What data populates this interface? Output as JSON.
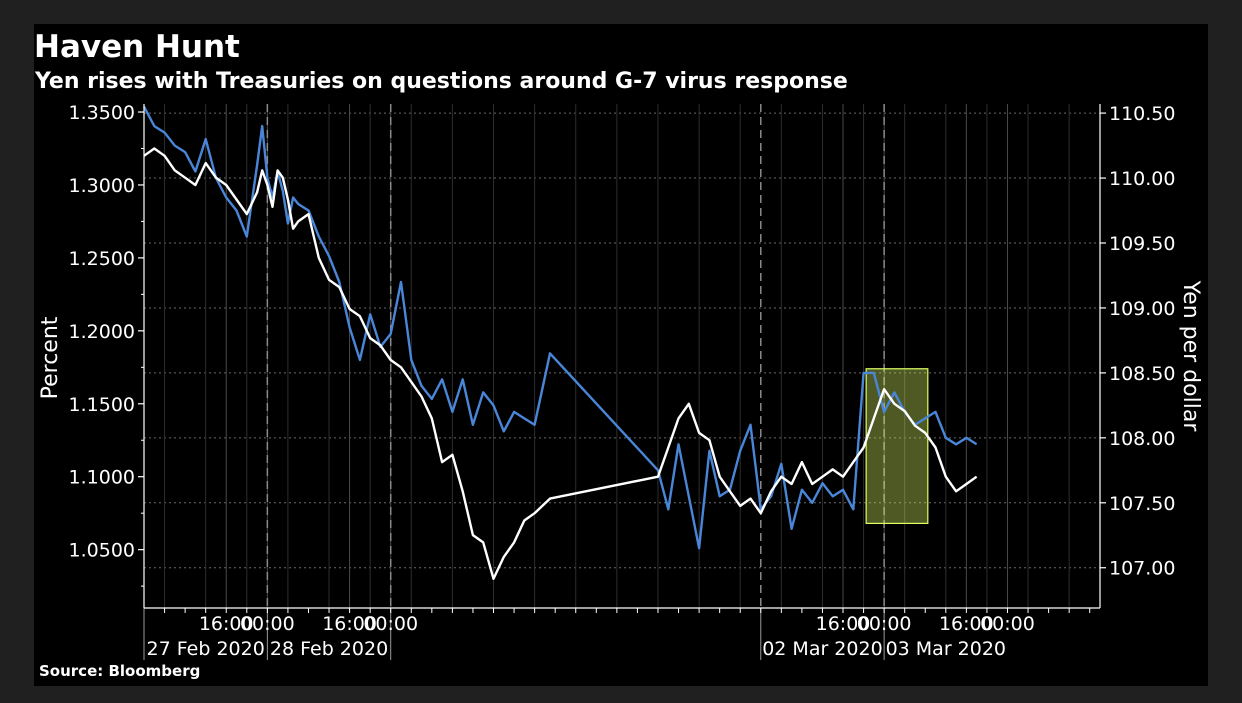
{
  "chart_data": {
    "type": "line",
    "title": "Haven Hunt",
    "subtitle": "Yen rises with Treasuries on questions around G-7 virus response",
    "source": "Source: Bloomberg",
    "ylabel_left": "Percent",
    "ylabel_right": "Yen per dollar",
    "y_left": {
      "range": [
        1.01,
        1.3555
      ],
      "ticks": [
        1.35,
        1.3,
        1.25,
        1.2,
        1.15,
        1.1,
        1.05
      ],
      "tick_labels": [
        "1.3500",
        "1.3000",
        "1.2500",
        "1.2000",
        "1.1500",
        "1.1000",
        "1.0500"
      ]
    },
    "y_right": {
      "range": [
        106.69,
        110.57
      ],
      "ticks": [
        110.5,
        110.0,
        109.5,
        109.0,
        108.5,
        108.0,
        107.5,
        107.0
      ],
      "tick_labels": [
        "110.50",
        "110.00",
        "109.50",
        "109.00",
        "108.50",
        "108.00",
        "107.50",
        "107.00"
      ]
    },
    "x_ticks": [
      {
        "t": 16,
        "label": "16:00"
      },
      {
        "t": 24,
        "label": "00:00"
      },
      {
        "t": 40,
        "label": "16:00"
      },
      {
        "t": 48,
        "label": "00:00"
      },
      {
        "t": 136,
        "label": "16:00"
      },
      {
        "t": 144,
        "label": "00:00"
      },
      {
        "t": 160,
        "label": "16:00"
      },
      {
        "t": 168,
        "label": "00:00"
      }
    ],
    "date_labels": [
      {
        "t": 12,
        "label": "27 Feb 2020"
      },
      {
        "t": 36,
        "label": "28 Feb 2020"
      },
      {
        "t": 132,
        "label": "02 Mar 2020"
      },
      {
        "t": 156,
        "label": "03 Mar 2020"
      }
    ],
    "x_range": [
      0,
      186
    ],
    "day_separators": [
      0,
      24,
      48,
      120,
      144
    ],
    "series": [
      {
        "axis": "right",
        "color": "#4a86d8",
        "x": [
          0,
          2,
          4,
          6,
          8,
          10,
          12,
          14,
          16,
          18,
          20,
          22,
          23,
          24,
          25,
          26,
          27,
          28,
          29,
          30,
          32,
          34,
          36,
          38,
          40,
          42,
          44,
          46,
          48,
          50,
          52,
          54,
          56,
          58,
          60,
          62,
          64,
          66,
          68,
          70,
          72,
          74,
          76,
          79,
          100,
          102,
          104,
          106,
          108,
          110,
          112,
          114,
          116,
          118,
          120,
          122,
          124,
          126,
          128,
          130,
          132,
          134,
          136,
          138,
          140,
          142,
          144,
          146,
          148,
          150,
          152,
          154,
          156,
          158,
          160,
          162
        ],
        "y": [
          110.55,
          110.4,
          110.35,
          110.25,
          110.2,
          110.05,
          110.3,
          110.0,
          109.85,
          109.75,
          109.55,
          110.1,
          110.4,
          110.0,
          109.85,
          110.05,
          109.9,
          109.65,
          109.85,
          109.8,
          109.75,
          109.55,
          109.4,
          109.2,
          108.85,
          108.6,
          108.95,
          108.7,
          108.8,
          109.2,
          108.6,
          108.4,
          108.3,
          108.45,
          108.2,
          108.45,
          108.1,
          108.35,
          108.25,
          108.05,
          108.2,
          108.15,
          108.1,
          108.65,
          107.75,
          107.45,
          107.95,
          107.55,
          107.15,
          107.9,
          107.55,
          107.6,
          107.9,
          108.1,
          107.45,
          107.55,
          107.8,
          107.3,
          107.6,
          107.5,
          107.65,
          107.55,
          107.6,
          107.45,
          108.5,
          108.5,
          108.2,
          108.35,
          108.2,
          108.1,
          108.15,
          108.2,
          108.0,
          107.95,
          108.0,
          107.95
        ]
      },
      {
        "axis": "left",
        "color": "#ffffff",
        "x": [
          0,
          2,
          4,
          6,
          8,
          10,
          12,
          14,
          16,
          18,
          20,
          22,
          23,
          24,
          25,
          26,
          27,
          28,
          29,
          30,
          32,
          34,
          36,
          38,
          40,
          42,
          44,
          46,
          48,
          50,
          52,
          54,
          56,
          58,
          60,
          62,
          64,
          66,
          68,
          70,
          72,
          74,
          76,
          79,
          100,
          102,
          104,
          106,
          108,
          110,
          112,
          114,
          116,
          118,
          120,
          122,
          124,
          126,
          128,
          130,
          132,
          134,
          136,
          138,
          140,
          142,
          144,
          146,
          148,
          150,
          152,
          154,
          156,
          158,
          160,
          162
        ],
        "y": [
          1.32,
          1.325,
          1.32,
          1.31,
          1.305,
          1.3,
          1.315,
          1.305,
          1.3,
          1.29,
          1.28,
          1.295,
          1.31,
          1.3,
          1.285,
          1.31,
          1.305,
          1.29,
          1.27,
          1.275,
          1.28,
          1.25,
          1.235,
          1.23,
          1.215,
          1.21,
          1.195,
          1.19,
          1.18,
          1.175,
          1.165,
          1.155,
          1.14,
          1.11,
          1.115,
          1.09,
          1.06,
          1.055,
          1.03,
          1.045,
          1.055,
          1.07,
          1.075,
          1.085,
          1.1,
          1.12,
          1.14,
          1.15,
          1.13,
          1.125,
          1.1,
          1.09,
          1.08,
          1.085,
          1.075,
          1.09,
          1.1,
          1.095,
          1.11,
          1.095,
          1.1,
          1.105,
          1.1,
          1.11,
          1.12,
          1.14,
          1.16,
          1.15,
          1.145,
          1.135,
          1.13,
          1.12,
          1.1,
          1.09,
          1.095,
          1.1
        ]
      }
    ],
    "highlight": {
      "x_range": [
        140.5,
        152.5
      ],
      "y_left_range": [
        1.068,
        1.174
      ],
      "color": "#dfff63"
    }
  }
}
